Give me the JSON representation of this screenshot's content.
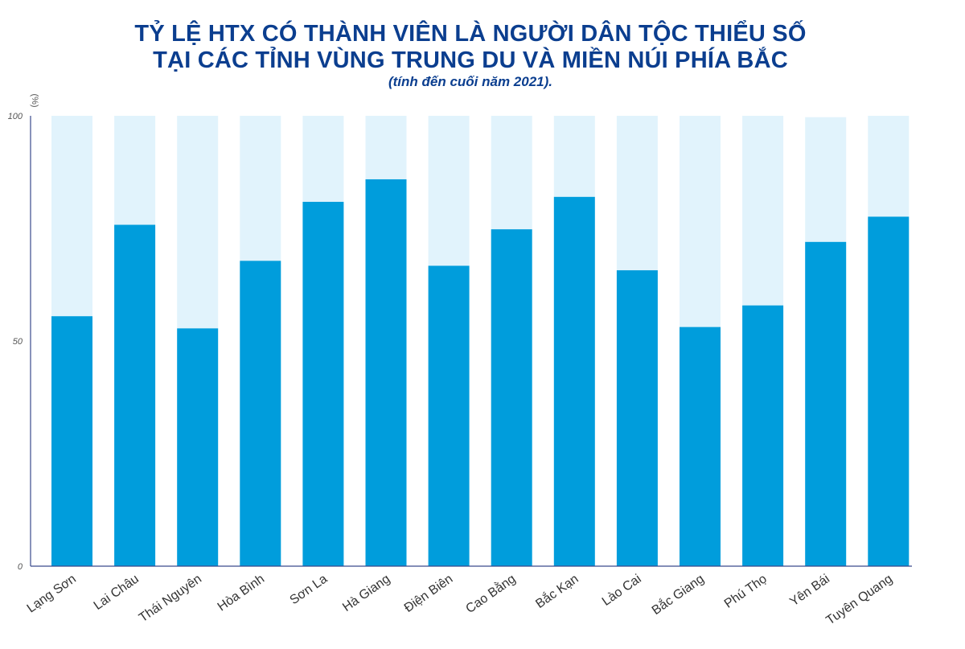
{
  "title": {
    "line1": "TỶ LỆ HTX CÓ THÀNH VIÊN LÀ NGƯỜI DÂN TỘC THIỂU SỐ",
    "line2": "TẠI CÁC TỈNH VÙNG TRUNG DU VÀ MIỀN NÚI PHÍA BẮC",
    "subtitle": "(tính đến cuối năm 2021)."
  },
  "colors": {
    "value": "#009ddc",
    "remainder": "#e1f3fc",
    "axis": "#3a4a8c",
    "title": "#0b3e8f"
  },
  "chart_data": {
    "type": "bar",
    "stacked": true,
    "title": "TỶ LỆ HTX CÓ THÀNH VIÊN LÀ NGƯỜI DÂN TỘC THIỂU SỐ TẠI CÁC TỈNH VÙNG TRUNG DU VÀ MIỀN NÚI PHÍA BẮC",
    "ylabel": "(%)",
    "ylim": [
      0,
      100
    ],
    "yticks": [
      0,
      50,
      100
    ],
    "categories": [
      "Lạng Sơn",
      "Lai Châu",
      "Thái Nguyên",
      "Hòa Bình",
      "Sơn La",
      "Hà Giang",
      "Điện Biên",
      "Cao Bằng",
      "Bắc Kạn",
      "Lào Cai",
      "Bắc Giang",
      "Phú Thọ",
      "Yên Bái",
      "Tuyên Quang"
    ],
    "values": [
      55.5,
      75.8,
      52.8,
      67.8,
      80.9,
      85.9,
      66.7,
      74.8,
      82.0,
      65.7,
      53.1,
      57.9,
      72.0,
      77.6
    ],
    "totals": [
      100,
      100,
      100,
      100,
      100,
      100,
      100,
      100,
      100,
      100,
      100,
      100,
      99.7,
      100
    ]
  }
}
